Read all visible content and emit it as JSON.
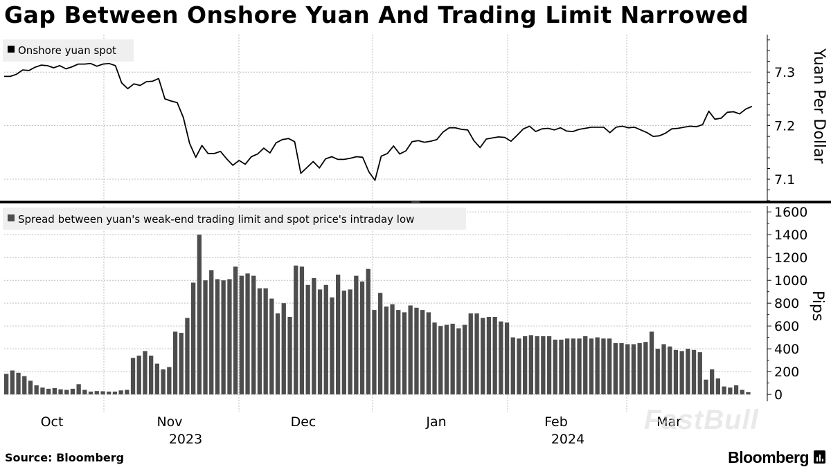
{
  "title": "Gap Between Onshore Yuan And Trading Limit Narrowed",
  "source": "Source: Bloomberg",
  "brand": "Bloomberg",
  "watermark": "FastBull",
  "colors": {
    "line": "#000000",
    "bar": "#4d4d4d",
    "grid": "#bdbdbd"
  },
  "chart_data": [
    {
      "type": "line",
      "legend": "Onshore yuan spot",
      "ylabel": "Yuan Per Dollar",
      "ylim": [
        7.06,
        7.37
      ],
      "yticks": [
        7.1,
        7.2,
        7.3
      ],
      "y_axis_position": "right",
      "series": [
        {
          "name": "Onshore yuan spot",
          "values": [
            7.292,
            7.292,
            7.296,
            7.304,
            7.303,
            7.309,
            7.313,
            7.312,
            7.308,
            7.312,
            7.306,
            7.31,
            7.315,
            7.315,
            7.316,
            7.311,
            7.315,
            7.316,
            7.312,
            7.28,
            7.269,
            7.278,
            7.275,
            7.282,
            7.283,
            7.288,
            7.25,
            7.246,
            7.243,
            7.215,
            7.167,
            7.141,
            7.163,
            7.148,
            7.148,
            7.152,
            7.138,
            7.126,
            7.135,
            7.128,
            7.142,
            7.147,
            7.158,
            7.149,
            7.168,
            7.174,
            7.176,
            7.17,
            7.111,
            7.122,
            7.133,
            7.121,
            7.138,
            7.142,
            7.137,
            7.137,
            7.139,
            7.142,
            7.141,
            7.114,
            7.098,
            7.143,
            7.148,
            7.162,
            7.147,
            7.153,
            7.17,
            7.172,
            7.169,
            7.171,
            7.174,
            7.188,
            7.196,
            7.196,
            7.193,
            7.192,
            7.172,
            7.159,
            7.175,
            7.177,
            7.179,
            7.178,
            7.171,
            7.182,
            7.194,
            7.199,
            7.189,
            7.194,
            7.195,
            7.192,
            7.196,
            7.19,
            7.189,
            7.193,
            7.195,
            7.197,
            7.197,
            7.197,
            7.187,
            7.197,
            7.199,
            7.196,
            7.197,
            7.192,
            7.187,
            7.18,
            7.181,
            7.186,
            7.194,
            7.195,
            7.197,
            7.199,
            7.198,
            7.202,
            7.227,
            7.212,
            7.214,
            7.225,
            7.226,
            7.222,
            7.231,
            7.236
          ]
        }
      ]
    },
    {
      "type": "bar",
      "legend": "Spread between yuan's weak-end trading limit and spot price's intraday low",
      "ylabel": "Pips",
      "ylim": [
        -60,
        1650
      ],
      "yticks": [
        0,
        200,
        400,
        600,
        800,
        1000,
        1200,
        1400,
        1600
      ],
      "y_axis_position": "right",
      "series": [
        {
          "name": "Spread between yuan's weak-end trading limit and spot price's intraday low",
          "values": [
            180,
            210,
            190,
            160,
            120,
            80,
            60,
            50,
            55,
            45,
            40,
            50,
            90,
            40,
            25,
            30,
            28,
            25,
            25,
            35,
            40,
            320,
            340,
            380,
            340,
            270,
            220,
            240,
            550,
            540,
            670,
            980,
            1400,
            1000,
            1090,
            1010,
            1000,
            1010,
            1120,
            1040,
            1060,
            1040,
            930,
            930,
            840,
            710,
            800,
            680,
            1130,
            1120,
            960,
            1020,
            920,
            960,
            850,
            1050,
            910,
            920,
            1040,
            990,
            1100,
            740,
            890,
            770,
            790,
            740,
            720,
            780,
            760,
            740,
            720,
            630,
            600,
            610,
            620,
            580,
            610,
            710,
            710,
            670,
            680,
            680,
            640,
            630,
            500,
            490,
            510,
            520,
            510,
            510,
            510,
            480,
            480,
            490,
            490,
            490,
            510,
            490,
            500,
            490,
            490,
            450,
            450,
            440,
            440,
            450,
            460,
            550,
            400,
            440,
            420,
            390,
            380,
            400,
            390,
            370,
            130,
            220,
            140,
            70,
            60,
            80,
            40,
            20
          ]
        }
      ]
    }
  ],
  "x_axis": {
    "months": [
      "Oct",
      "Nov",
      "Dec",
      "Jan",
      "Feb",
      "Mar"
    ],
    "years": [
      "2023",
      "2024"
    ]
  }
}
